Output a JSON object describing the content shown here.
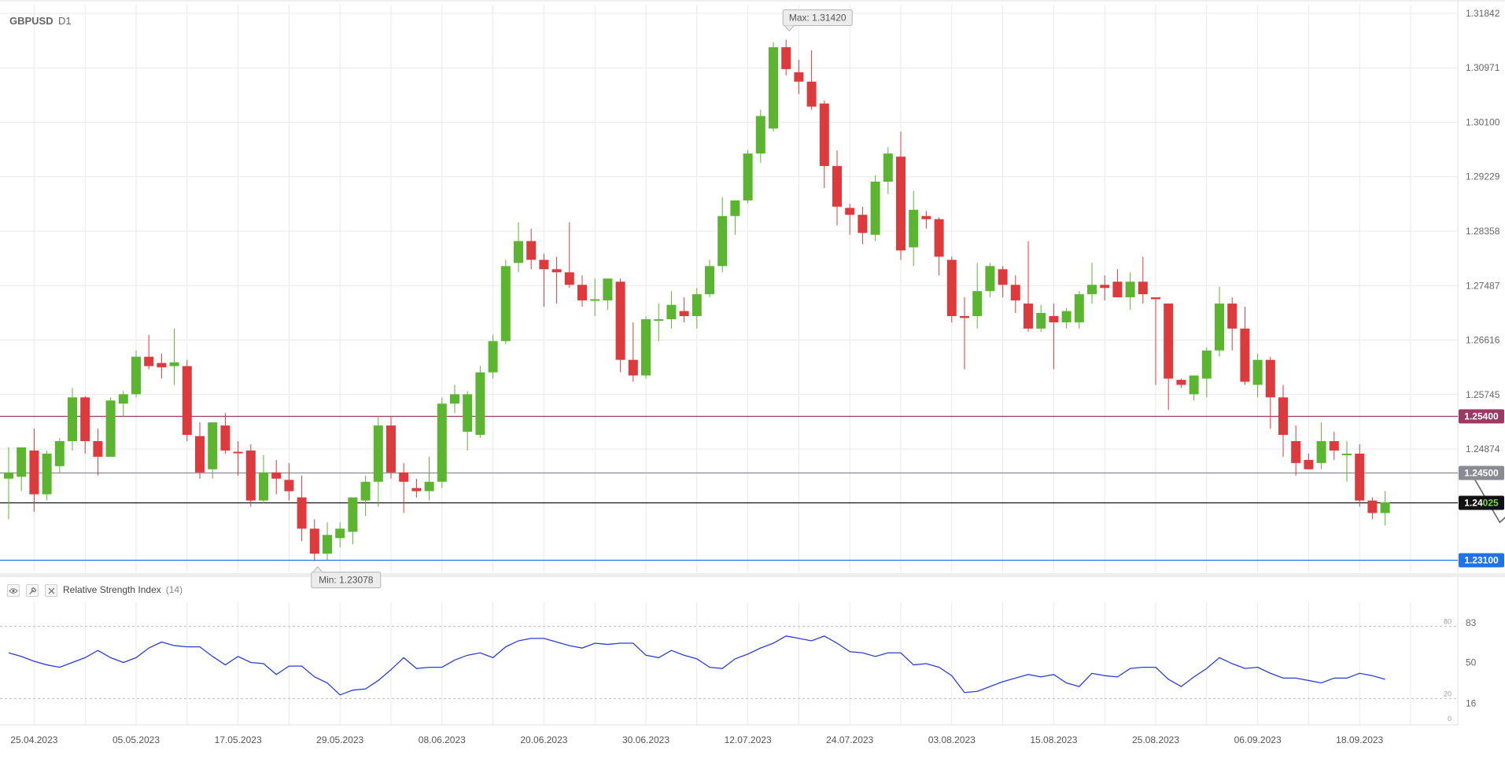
{
  "symbol": "GBPUSD",
  "timeframe": "D1",
  "colors": {
    "up": "#5cb531",
    "down": "#dc3a3d",
    "grid": "#e9e9e9",
    "rsi_line": "#2a3ed6"
  },
  "chart_data": {
    "type": "candlestick",
    "title": "GBPUSD D1",
    "x_tick_labels": [
      "25.04.2023",
      "05.05.2023",
      "17.05.2023",
      "29.05.2023",
      "08.06.2023",
      "20.06.2023",
      "30.06.2023",
      "12.07.2023",
      "24.07.2023",
      "03.08.2023",
      "15.08.2023",
      "25.08.2023",
      "06.09.2023",
      "18.09.2023"
    ],
    "y_tick_labels": [
      "1.31842",
      "1.30971",
      "1.30100",
      "1.29229",
      "1.28358",
      "1.27487",
      "1.26616",
      "1.25745",
      "1.24874"
    ],
    "ylim": [
      1.229,
      1.3198
    ],
    "max_annotation": "Max: 1.31420",
    "min_annotation": "Min: 1.23078",
    "levels": [
      {
        "name": "resistance",
        "value": 1.254,
        "label": "1.25400",
        "color": "#9b3a64"
      },
      {
        "name": "pivot",
        "value": 1.245,
        "label": "1.24500",
        "color": "#8a8a92"
      },
      {
        "name": "current-price",
        "value": 1.24025,
        "label_main": "1.24",
        "label_accent": "025",
        "color": "#111111"
      },
      {
        "name": "support",
        "value": 1.231,
        "label": "1.23100",
        "color": "#1e73e8"
      }
    ],
    "candles": [
      {
        "o": 1.244,
        "h": 1.249,
        "l": 1.2375,
        "c": 1.245
      },
      {
        "o": 1.2443,
        "h": 1.249,
        "l": 1.242,
        "c": 1.249
      },
      {
        "o": 1.2485,
        "h": 1.252,
        "l": 1.2387,
        "c": 1.2415
      },
      {
        "o": 1.2415,
        "h": 1.2485,
        "l": 1.2405,
        "c": 1.248
      },
      {
        "o": 1.246,
        "h": 1.2505,
        "l": 1.245,
        "c": 1.25
      },
      {
        "o": 1.25,
        "h": 1.2585,
        "l": 1.2485,
        "c": 1.257
      },
      {
        "o": 1.257,
        "h": 1.2572,
        "l": 1.248,
        "c": 1.25
      },
      {
        "o": 1.25,
        "h": 1.252,
        "l": 1.2445,
        "c": 1.2475
      },
      {
        "o": 1.2475,
        "h": 1.257,
        "l": 1.2475,
        "c": 1.2565
      },
      {
        "o": 1.256,
        "h": 1.258,
        "l": 1.254,
        "c": 1.2575
      },
      {
        "o": 1.2575,
        "h": 1.2645,
        "l": 1.257,
        "c": 1.2635
      },
      {
        "o": 1.2635,
        "h": 1.267,
        "l": 1.2615,
        "c": 1.262
      },
      {
        "o": 1.2625,
        "h": 1.264,
        "l": 1.26,
        "c": 1.2618
      },
      {
        "o": 1.262,
        "h": 1.268,
        "l": 1.259,
        "c": 1.2626
      },
      {
        "o": 1.262,
        "h": 1.263,
        "l": 1.25,
        "c": 1.251
      },
      {
        "o": 1.2508,
        "h": 1.253,
        "l": 1.244,
        "c": 1.245
      },
      {
        "o": 1.2455,
        "h": 1.253,
        "l": 1.244,
        "c": 1.253
      },
      {
        "o": 1.2525,
        "h": 1.2545,
        "l": 1.248,
        "c": 1.2485
      },
      {
        "o": 1.2483,
        "h": 1.25,
        "l": 1.2445,
        "c": 1.2482
      },
      {
        "o": 1.2485,
        "h": 1.2495,
        "l": 1.2395,
        "c": 1.2405
      },
      {
        "o": 1.2405,
        "h": 1.2478,
        "l": 1.24,
        "c": 1.245
      },
      {
        "o": 1.245,
        "h": 1.247,
        "l": 1.2415,
        "c": 1.244
      },
      {
        "o": 1.2438,
        "h": 1.2465,
        "l": 1.2405,
        "c": 1.242
      },
      {
        "o": 1.241,
        "h": 1.2445,
        "l": 1.234,
        "c": 1.236
      },
      {
        "o": 1.236,
        "h": 1.2375,
        "l": 1.2308,
        "c": 1.232
      },
      {
        "o": 1.232,
        "h": 1.237,
        "l": 1.231,
        "c": 1.235
      },
      {
        "o": 1.2345,
        "h": 1.237,
        "l": 1.233,
        "c": 1.236
      },
      {
        "o": 1.2355,
        "h": 1.241,
        "l": 1.2335,
        "c": 1.241
      },
      {
        "o": 1.2405,
        "h": 1.2445,
        "l": 1.238,
        "c": 1.2435
      },
      {
        "o": 1.2435,
        "h": 1.254,
        "l": 1.2395,
        "c": 1.2525
      },
      {
        "o": 1.2525,
        "h": 1.254,
        "l": 1.244,
        "c": 1.245
      },
      {
        "o": 1.245,
        "h": 1.2465,
        "l": 1.2385,
        "c": 1.2435
      },
      {
        "o": 1.2425,
        "h": 1.244,
        "l": 1.241,
        "c": 1.242
      },
      {
        "o": 1.242,
        "h": 1.2475,
        "l": 1.2405,
        "c": 1.2435
      },
      {
        "o": 1.2435,
        "h": 1.257,
        "l": 1.2425,
        "c": 1.256
      },
      {
        "o": 1.256,
        "h": 1.259,
        "l": 1.2545,
        "c": 1.2575
      },
      {
        "o": 1.2515,
        "h": 1.258,
        "l": 1.2485,
        "c": 1.2575
      },
      {
        "o": 1.251,
        "h": 1.262,
        "l": 1.2505,
        "c": 1.261
      },
      {
        "o": 1.261,
        "h": 1.267,
        "l": 1.26,
        "c": 1.266
      },
      {
        "o": 1.266,
        "h": 1.279,
        "l": 1.2655,
        "c": 1.278
      },
      {
        "o": 1.2785,
        "h": 1.285,
        "l": 1.277,
        "c": 1.282
      },
      {
        "o": 1.282,
        "h": 1.284,
        "l": 1.2775,
        "c": 1.279
      },
      {
        "o": 1.279,
        "h": 1.28,
        "l": 1.2715,
        "c": 1.2775
      },
      {
        "o": 1.2775,
        "h": 1.2795,
        "l": 1.272,
        "c": 1.277
      },
      {
        "o": 1.277,
        "h": 1.285,
        "l": 1.2745,
        "c": 1.275
      },
      {
        "o": 1.275,
        "h": 1.2765,
        "l": 1.2715,
        "c": 1.2725
      },
      {
        "o": 1.2725,
        "h": 1.276,
        "l": 1.27,
        "c": 1.2727
      },
      {
        "o": 1.2725,
        "h": 1.276,
        "l": 1.271,
        "c": 1.276
      },
      {
        "o": 1.2755,
        "h": 1.276,
        "l": 1.261,
        "c": 1.263
      },
      {
        "o": 1.263,
        "h": 1.269,
        "l": 1.2595,
        "c": 1.2605
      },
      {
        "o": 1.2605,
        "h": 1.27,
        "l": 1.26,
        "c": 1.2695
      },
      {
        "o": 1.2693,
        "h": 1.272,
        "l": 1.266,
        "c": 1.2695
      },
      {
        "o": 1.2695,
        "h": 1.274,
        "l": 1.268,
        "c": 1.2718
      },
      {
        "o": 1.2708,
        "h": 1.273,
        "l": 1.269,
        "c": 1.27
      },
      {
        "o": 1.27,
        "h": 1.2745,
        "l": 1.268,
        "c": 1.2735
      },
      {
        "o": 1.2735,
        "h": 1.279,
        "l": 1.273,
        "c": 1.278
      },
      {
        "o": 1.278,
        "h": 1.289,
        "l": 1.277,
        "c": 1.286
      },
      {
        "o": 1.286,
        "h": 1.2885,
        "l": 1.283,
        "c": 1.2885
      },
      {
        "o": 1.2885,
        "h": 1.2965,
        "l": 1.288,
        "c": 1.296
      },
      {
        "o": 1.296,
        "h": 1.303,
        "l": 1.2945,
        "c": 1.302
      },
      {
        "o": 1.3,
        "h": 1.3138,
        "l": 1.2995,
        "c": 1.313
      },
      {
        "o": 1.313,
        "h": 1.3142,
        "l": 1.3085,
        "c": 1.3095
      },
      {
        "o": 1.309,
        "h": 1.311,
        "l": 1.3055,
        "c": 1.3075
      },
      {
        "o": 1.3075,
        "h": 1.3125,
        "l": 1.303,
        "c": 1.3035
      },
      {
        "o": 1.304,
        "h": 1.3045,
        "l": 1.2905,
        "c": 1.294
      },
      {
        "o": 1.294,
        "h": 1.2965,
        "l": 1.2845,
        "c": 1.2875
      },
      {
        "o": 1.2873,
        "h": 1.288,
        "l": 1.283,
        "c": 1.2862
      },
      {
        "o": 1.2862,
        "h": 1.2875,
        "l": 1.2815,
        "c": 1.2833
      },
      {
        "o": 1.283,
        "h": 1.2925,
        "l": 1.282,
        "c": 1.2915
      },
      {
        "o": 1.2915,
        "h": 1.297,
        "l": 1.2895,
        "c": 1.296
      },
      {
        "o": 1.2955,
        "h": 1.2995,
        "l": 1.279,
        "c": 1.2805
      },
      {
        "o": 1.281,
        "h": 1.29,
        "l": 1.278,
        "c": 1.287
      },
      {
        "o": 1.286,
        "h": 1.2868,
        "l": 1.284,
        "c": 1.2855
      },
      {
        "o": 1.2855,
        "h": 1.2858,
        "l": 1.2765,
        "c": 1.2795
      },
      {
        "o": 1.279,
        "h": 1.2795,
        "l": 1.269,
        "c": 1.27
      },
      {
        "o": 1.27,
        "h": 1.273,
        "l": 1.2615,
        "c": 1.2697
      },
      {
        "o": 1.27,
        "h": 1.2785,
        "l": 1.268,
        "c": 1.274
      },
      {
        "o": 1.274,
        "h": 1.2785,
        "l": 1.273,
        "c": 1.278
      },
      {
        "o": 1.2775,
        "h": 1.278,
        "l": 1.273,
        "c": 1.275
      },
      {
        "o": 1.275,
        "h": 1.2765,
        "l": 1.2705,
        "c": 1.2725
      },
      {
        "o": 1.272,
        "h": 1.282,
        "l": 1.2675,
        "c": 1.268
      },
      {
        "o": 1.268,
        "h": 1.2718,
        "l": 1.2675,
        "c": 1.2705
      },
      {
        "o": 1.27,
        "h": 1.272,
        "l": 1.2615,
        "c": 1.269
      },
      {
        "o": 1.269,
        "h": 1.2713,
        "l": 1.268,
        "c": 1.2708
      },
      {
        "o": 1.269,
        "h": 1.274,
        "l": 1.268,
        "c": 1.2735
      },
      {
        "o": 1.2735,
        "h": 1.2785,
        "l": 1.272,
        "c": 1.275
      },
      {
        "o": 1.275,
        "h": 1.2765,
        "l": 1.2725,
        "c": 1.2745
      },
      {
        "o": 1.2755,
        "h": 1.2775,
        "l": 1.273,
        "c": 1.273
      },
      {
        "o": 1.273,
        "h": 1.277,
        "l": 1.271,
        "c": 1.2755
      },
      {
        "o": 1.2755,
        "h": 1.2795,
        "l": 1.272,
        "c": 1.2735
      },
      {
        "o": 1.273,
        "h": 1.273,
        "l": 1.259,
        "c": 1.2727
      },
      {
        "o": 1.272,
        "h": 1.272,
        "l": 1.255,
        "c": 1.26
      },
      {
        "o": 1.2598,
        "h": 1.26,
        "l": 1.2585,
        "c": 1.259
      },
      {
        "o": 1.2575,
        "h": 1.2605,
        "l": 1.2565,
        "c": 1.2605
      },
      {
        "o": 1.26,
        "h": 1.265,
        "l": 1.257,
        "c": 1.2645
      },
      {
        "o": 1.2645,
        "h": 1.2747,
        "l": 1.2635,
        "c": 1.272
      },
      {
        "o": 1.272,
        "h": 1.273,
        "l": 1.2645,
        "c": 1.268
      },
      {
        "o": 1.268,
        "h": 1.2715,
        "l": 1.259,
        "c": 1.2595
      },
      {
        "o": 1.259,
        "h": 1.264,
        "l": 1.257,
        "c": 1.263
      },
      {
        "o": 1.263,
        "h": 1.2635,
        "l": 1.252,
        "c": 1.257
      },
      {
        "o": 1.257,
        "h": 1.259,
        "l": 1.2475,
        "c": 1.251
      },
      {
        "o": 1.25,
        "h": 1.2525,
        "l": 1.2445,
        "c": 1.2465
      },
      {
        "o": 1.247,
        "h": 1.248,
        "l": 1.2455,
        "c": 1.2455
      },
      {
        "o": 1.2465,
        "h": 1.253,
        "l": 1.2455,
        "c": 1.25
      },
      {
        "o": 1.25,
        "h": 1.2515,
        "l": 1.247,
        "c": 1.2485
      },
      {
        "o": 1.248,
        "h": 1.25,
        "l": 1.2435,
        "c": 1.248
      },
      {
        "o": 1.248,
        "h": 1.2495,
        "l": 1.2395,
        "c": 1.2405
      },
      {
        "o": 1.2405,
        "h": 1.241,
        "l": 1.2375,
        "c": 1.2385
      },
      {
        "o": 1.2385,
        "h": 1.242,
        "l": 1.2365,
        "c": 1.2402
      }
    ],
    "forecast_path": [
      {
        "i": 115,
        "p": 1.244
      },
      {
        "i": 117,
        "p": 1.237
      },
      {
        "i": 119,
        "p": 1.2408
      },
      {
        "i": 121,
        "p": 1.232
      }
    ]
  },
  "rsi": {
    "title": "Relative Strength Index",
    "period": "(14)",
    "ylim": [
      0,
      100
    ],
    "tick_labels": [
      "83",
      "50",
      "16"
    ],
    "guide_labels": [
      "80",
      "20",
      "0"
    ],
    "values": [
      58,
      55,
      51,
      48,
      46,
      50,
      54,
      60,
      54,
      50,
      54,
      62,
      67,
      64,
      63,
      63,
      55,
      48,
      55,
      50,
      49,
      40,
      47,
      47,
      38,
      33,
      23,
      27,
      28,
      35,
      44,
      54,
      45,
      46,
      46,
      52,
      56,
      58,
      54,
      63,
      68,
      70,
      70,
      67,
      64,
      62,
      66,
      65,
      66,
      66,
      56,
      54,
      60,
      56,
      53,
      46,
      45,
      53,
      57,
      62,
      66,
      72,
      70,
      68,
      72,
      66,
      59,
      58,
      55,
      58,
      58,
      48,
      49,
      46,
      39,
      25,
      26,
      30,
      34,
      37,
      40,
      38,
      40,
      33,
      30,
      41,
      39,
      38,
      45,
      46,
      46,
      36,
      30,
      38,
      45,
      54,
      49,
      45,
      46,
      41,
      37,
      37,
      35,
      33,
      37,
      37,
      41,
      39,
      36
    ]
  }
}
